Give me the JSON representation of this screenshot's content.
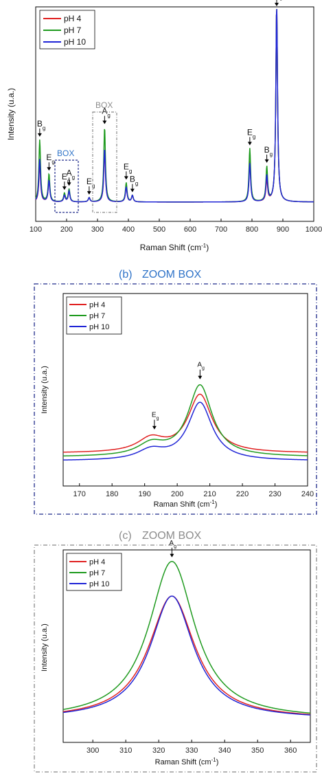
{
  "colors": {
    "ph4": "#e02020",
    "ph7": "#1e9a1e",
    "ph10": "#1f24d6",
    "blue_title": "#2f73c8",
    "gray_title": "#8c8c8c",
    "box_blue": "#1f2a8a",
    "box_gray": "#888888"
  },
  "chart_data": [
    {
      "type": "line",
      "xlabel": "Raman Shift (cm-1)",
      "ylabel": "Intensity (u.a.)",
      "xlim": [
        100,
        1000
      ],
      "xticks": [
        "100",
        "200",
        "300",
        "400",
        "500",
        "600",
        "700",
        "800",
        "900",
        "1000"
      ],
      "legend": [
        "pH 4",
        "pH 7",
        "pH 10"
      ],
      "legend_position": "top-left",
      "box_labels": [
        "BOX",
        "BOX"
      ],
      "annotations": [
        {
          "label": "B",
          "sub": "g",
          "x": 113
        },
        {
          "label": "E",
          "sub": "g",
          "x": 143
        },
        {
          "label": "E",
          "sub": "g",
          "x": 193
        },
        {
          "label": "A",
          "sub": "g",
          "x": 208
        },
        {
          "label": "E",
          "sub": "g",
          "x": 273
        },
        {
          "label": "A",
          "sub": "g",
          "x": 323
        },
        {
          "label": "E",
          "sub": "g",
          "x": 393
        },
        {
          "label": "B",
          "sub": "g",
          "x": 413
        },
        {
          "label": "E",
          "sub": "g",
          "x": 793
        },
        {
          "label": "B",
          "sub": "g",
          "x": 848
        },
        {
          "label": "A",
          "sub": "g",
          "x": 880
        }
      ],
      "series": [
        {
          "name": "pH 4",
          "peaks": [
            [
              113,
              0.18
            ],
            [
              143,
              0.1
            ],
            [
              193,
              0.03
            ],
            [
              208,
              0.05
            ],
            [
              273,
              0.02
            ],
            [
              323,
              0.24
            ],
            [
              393,
              0.07
            ],
            [
              413,
              0.03
            ],
            [
              793,
              0.19
            ],
            [
              848,
              0.1
            ],
            [
              880,
              0.93
            ]
          ]
        },
        {
          "name": "pH 7",
          "peaks": [
            [
              113,
              0.29
            ],
            [
              143,
              0.13
            ],
            [
              193,
              0.04
            ],
            [
              208,
              0.06
            ],
            [
              273,
              0.02
            ],
            [
              323,
              0.35
            ],
            [
              393,
              0.09
            ],
            [
              413,
              0.03
            ],
            [
              793,
              0.25
            ],
            [
              848,
              0.16
            ],
            [
              880,
              0.93
            ]
          ]
        },
        {
          "name": "pH 10",
          "peaks": [
            [
              113,
              0.2
            ],
            [
              143,
              0.1
            ],
            [
              193,
              0.03
            ],
            [
              208,
              0.05
            ],
            [
              273,
              0.02
            ],
            [
              323,
              0.25
            ],
            [
              393,
              0.07
            ],
            [
              413,
              0.03
            ],
            [
              793,
              0.18
            ],
            [
              848,
              0.12
            ],
            [
              880,
              0.93
            ]
          ]
        }
      ]
    },
    {
      "type": "line",
      "panel_label": "(b)",
      "title": "ZOOM BOX",
      "xlabel": "Raman Shift (cm-1)",
      "ylabel": "Intensity (u.a.)",
      "xlim": [
        165,
        240
      ],
      "xticks": [
        "170",
        "180",
        "190",
        "200",
        "210",
        "220",
        "230",
        "240"
      ],
      "legend": [
        "pH 4",
        "pH 7",
        "pH 10"
      ],
      "legend_position": "top-left",
      "annotations": [
        {
          "label": "E",
          "sub": "g",
          "x": 193
        },
        {
          "label": "A",
          "sub": "g",
          "x": 207
        }
      ],
      "series": [
        {
          "name": "pH 4",
          "baseline": 0.17,
          "peaks": [
            [
              192,
              0.07,
              5
            ],
            [
              207,
              0.3,
              4.5
            ]
          ]
        },
        {
          "name": "pH 7",
          "baseline": 0.15,
          "peaks": [
            [
              192,
              0.06,
              5
            ],
            [
              207,
              0.37,
              4.5
            ]
          ]
        },
        {
          "name": "pH 10",
          "baseline": 0.13,
          "peaks": [
            [
              192,
              0.05,
              5
            ],
            [
              207,
              0.3,
              4.5
            ]
          ]
        }
      ]
    },
    {
      "type": "line",
      "panel_label": "(c)",
      "title": "ZOOM BOX",
      "xlabel": "Raman Shift (cm-1)",
      "ylabel": "Intensity (u.a.)",
      "xlim": [
        291,
        366
      ],
      "xticks": [
        "300",
        "310",
        "320",
        "330",
        "340",
        "350",
        "360"
      ],
      "legend": [
        "pH 4",
        "pH 7",
        "pH 10"
      ],
      "legend_position": "top-left",
      "annotations": [
        {
          "label": "A",
          "sub": "g",
          "x": 324
        }
      ],
      "series": [
        {
          "name": "pH 4",
          "peak": [
            324,
            0.64,
            8.5
          ]
        },
        {
          "name": "pH 7",
          "peak": [
            324,
            0.82,
            8.5
          ]
        },
        {
          "name": "pH 10",
          "peak": [
            324,
            0.64,
            8.0
          ]
        }
      ]
    }
  ]
}
